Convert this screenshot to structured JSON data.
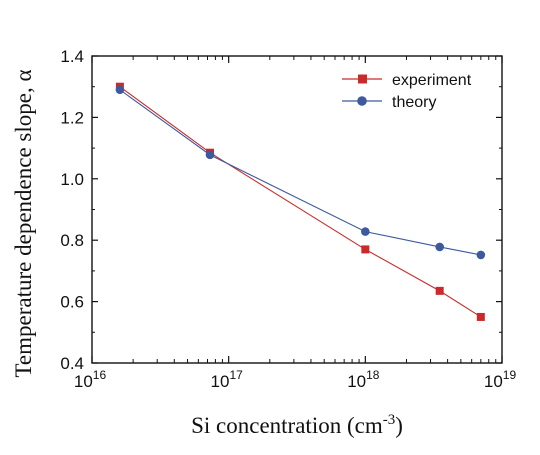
{
  "chart_data": {
    "type": "line",
    "xscale": "log",
    "xlim": [
      1e+16,
      1e+19
    ],
    "ylim": [
      0.4,
      1.4
    ],
    "xlabel": {
      "main": "Si concentration (cm",
      "sup": "-3",
      "end": ")"
    },
    "ylabel": "Temperature dependence slope, α",
    "xticks": [
      {
        "value": 1e+16,
        "base": "10",
        "exp": "16"
      },
      {
        "value": 1e+17,
        "base": "10",
        "exp": "17"
      },
      {
        "value": 1e+18,
        "base": "10",
        "exp": "18"
      },
      {
        "value": 1e+19,
        "base": "10",
        "exp": "19"
      }
    ],
    "yticks": [
      "0.4",
      "0.6",
      "0.8",
      "1.0",
      "1.2",
      "1.4"
    ],
    "legend_position": "top-right",
    "series": [
      {
        "name": "experiment",
        "marker": "square",
        "color": "#cc2a2a",
        "x": [
          1.6e+16,
          7.3e+16,
          1e+18,
          3.5e+18,
          7e+18
        ],
        "y": [
          1.3,
          1.085,
          0.77,
          0.635,
          0.55
        ]
      },
      {
        "name": "theory",
        "marker": "circle",
        "color": "#3d5a9e",
        "x": [
          1.6e+16,
          7.3e+16,
          1e+18,
          3.5e+18,
          7e+18
        ],
        "y": [
          1.29,
          1.078,
          0.828,
          0.778,
          0.752
        ]
      }
    ]
  }
}
